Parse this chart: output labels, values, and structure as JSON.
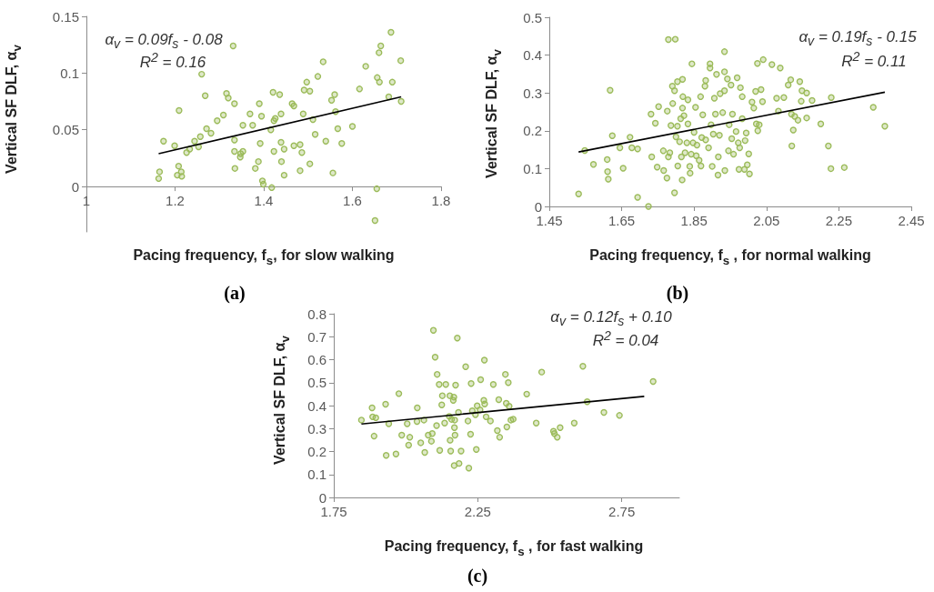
{
  "chart_data": [
    {
      "type": "scatter",
      "xlabel": "Pacing frequency, f$_{s}$, for slow walking",
      "ylabel": "Vertical SF DLF, α$_{v}$",
      "annotations": [
        "α$_{v}$ = 0.09f$_{s}$ - 0.08",
        "R$^{2}$ = 0.16",
        "(a)"
      ],
      "xlim": [
        1,
        1.8
      ],
      "xticks": [
        1,
        1.2,
        1.4,
        1.6,
        1.8
      ],
      "ylim": [
        -0.04,
        0.15
      ],
      "yticks": [
        0,
        0.05,
        0.1,
        0.15
      ],
      "grid": false,
      "marker": "circle",
      "series": [
        {
          "color": "#9bbb59",
          "x": [
            1.163,
            1.165,
            1.174,
            1.199,
            1.209,
            1.208,
            1.205,
            1.214,
            1.215,
            1.226,
            1.233,
            1.244,
            1.253,
            1.257,
            1.26,
            1.268,
            1.271,
            1.281,
            1.295,
            1.309,
            1.316,
            1.32,
            1.331,
            1.334,
            1.334,
            1.334,
            1.335,
            1.347,
            1.348,
            1.353,
            1.353,
            1.369,
            1.375,
            1.381,
            1.388,
            1.39,
            1.392,
            1.395,
            1.397,
            1.399,
            1.416,
            1.418,
            1.421,
            1.423,
            1.423,
            1.426,
            1.436,
            1.439,
            1.439,
            1.44,
            1.446,
            1.446,
            1.464,
            1.468,
            1.468,
            1.482,
            1.482,
            1.486,
            1.489,
            1.491,
            1.497,
            1.504,
            1.504,
            1.511,
            1.516,
            1.522,
            1.54,
            1.534,
            1.553,
            1.56,
            1.556,
            1.562,
            1.567,
            1.576,
            1.6,
            1.616,
            1.63,
            1.655,
            1.651,
            1.656,
            1.66,
            1.664,
            1.661,
            1.682,
            1.687,
            1.69,
            1.709,
            1.71
          ],
          "values": [
            0.007,
            0.013,
            0.04,
            0.036,
            0.067,
            0.018,
            0.01,
            0.013,
            0.009,
            0.03,
            0.033,
            0.04,
            0.035,
            0.044,
            0.099,
            0.08,
            0.051,
            0.047,
            0.058,
            0.063,
            0.082,
            0.078,
            0.124,
            0.073,
            0.041,
            0.031,
            0.016,
            0.026,
            0.029,
            0.054,
            0.031,
            0.064,
            0.054,
            0.016,
            0.022,
            0.073,
            0.038,
            0.062,
            0.005,
            0.002,
            0.05,
            -0.001,
            0.083,
            0.058,
            0.031,
            0.06,
            0.081,
            0.064,
            0.039,
            0.022,
            0.033,
            0.01,
            0.073,
            0.071,
            0.036,
            0.037,
            0.014,
            0.03,
            0.064,
            0.085,
            0.092,
            0.084,
            0.02,
            0.059,
            0.046,
            0.097,
            0.04,
            0.11,
            0.076,
            0.081,
            0.012,
            0.066,
            0.051,
            0.038,
            0.053,
            0.086,
            0.106,
            -0.002,
            -0.03,
            0.096,
            0.118,
            0.124,
            0.092,
            0.079,
            0.136,
            0.092,
            0.111,
            0.075
          ]
        },
        {
          "type": "line",
          "color": "#000000",
          "marker": "none",
          "x": [
            1.163,
            1.71
          ],
          "values": [
            0.029,
            0.079
          ]
        }
      ]
    },
    {
      "type": "scatter",
      "xlabel": "Pacing frequency, f$_{s}$ , for normal walking",
      "ylabel": "Vertical SF DLF, α$_{v}$",
      "annotations": [
        "α$_{v}$ = 0.19f$_{s}$ - 0.15",
        "R$^{2}$ = 0.11",
        "(b)"
      ],
      "xlim": [
        1.45,
        2.45
      ],
      "xticks": [
        1.45,
        1.65,
        1.85,
        2.05,
        2.25,
        2.45
      ],
      "ylim": [
        0,
        0.5
      ],
      "yticks": [
        0,
        0.1,
        0.2,
        0.3,
        0.4,
        0.5
      ],
      "grid": false,
      "marker": "circle",
      "series": [
        {
          "color": "#9bbb59",
          "x": [
            1.531,
            1.548,
            1.572,
            1.61,
            1.611,
            1.613,
            1.618,
            1.624,
            1.645,
            1.654,
            1.673,
            1.678,
            1.694,
            1.694,
            1.724,
            1.731,
            1.733,
            1.743,
            1.748,
            1.752,
            1.765,
            1.766,
            1.775,
            1.776,
            1.779,
            1.798,
            1.786,
            1.779,
            1.783,
            1.79,
            1.791,
            1.796,
            1.796,
            1.8,
            1.804,
            1.804,
            1.805,
            1.81,
            1.813,
            1.815,
            1.817,
            1.818,
            1.819,
            1.818,
            1.822,
            1.825,
            1.83,
            1.833,
            1.833,
            1.838,
            1.839,
            1.842,
            1.844,
            1.847,
            1.85,
            1.854,
            1.856,
            1.858,
            1.864,
            1.868,
            1.869,
            1.871,
            1.874,
            1.88,
            1.882,
            1.882,
            1.89,
            1.894,
            1.894,
            1.897,
            1.9,
            1.903,
            1.906,
            1.909,
            1.912,
            1.916,
            1.917,
            1.92,
            1.922,
            1.929,
            1.934,
            1.934,
            1.934,
            1.935,
            1.942,
            1.945,
            1.947,
            1.952,
            1.954,
            1.956,
            1.959,
            1.966,
            1.969,
            1.972,
            1.974,
            1.976,
            1.978,
            1.983,
            1.983,
            1.989,
            1.991,
            1.994,
            1.997,
            2.001,
            2.003,
            2.01,
            2.015,
            2.02,
            2.022,
            2.025,
            2.026,
            2.03,
            2.035,
            2.039,
            2.041,
            2.065,
            2.078,
            2.083,
            2.088,
            2.098,
            2.11,
            2.117,
            2.119,
            2.12,
            2.124,
            2.128,
            2.137,
            2.142,
            2.146,
            2.148,
            2.161,
            2.161,
            2.176,
            2.2,
            2.221,
            2.228,
            2.229,
            2.265,
            2.345,
            2.377
          ],
          "values": [
            0.033,
            0.148,
            0.111,
            0.124,
            0.092,
            0.072,
            0.307,
            0.187,
            0.155,
            0.101,
            0.183,
            0.155,
            0.024,
            0.152,
            0.0,
            0.244,
            0.131,
            0.22,
            0.104,
            0.264,
            0.147,
            0.095,
            0.075,
            0.252,
            0.441,
            0.442,
            0.214,
            0.131,
            0.142,
            0.318,
            0.272,
            0.306,
            0.036,
            0.184,
            0.33,
            0.212,
            0.107,
            0.171,
            0.232,
            0.131,
            0.07,
            0.336,
            0.29,
            0.26,
            0.24,
            0.142,
            0.168,
            0.282,
            0.218,
            0.106,
            0.088,
            0.138,
            0.377,
            0.168,
            0.196,
            0.262,
            0.134,
            0.162,
            0.122,
            0.29,
            0.107,
            0.182,
            0.242,
            0.318,
            0.333,
            0.176,
            0.155,
            0.377,
            0.366,
            0.216,
            0.106,
            0.191,
            0.286,
            0.244,
            0.349,
            0.083,
            0.131,
            0.188,
            0.298,
            0.248,
            0.409,
            0.356,
            0.306,
            0.095,
            0.337,
            0.147,
            0.216,
            0.321,
            0.179,
            0.244,
            0.138,
            0.198,
            0.34,
            0.168,
            0.098,
            0.155,
            0.314,
            0.29,
            0.232,
            0.098,
            0.174,
            0.194,
            0.11,
            0.139,
            0.086,
            0.276,
            0.26,
            0.304,
            0.218,
            0.378,
            0.2,
            0.216,
            0.309,
            0.277,
            0.388,
            0.375,
            0.286,
            0.252,
            0.366,
            0.288,
            0.321,
            0.335,
            0.244,
            0.16,
            0.202,
            0.238,
            0.228,
            0.33,
            0.278,
            0.306,
            0.3,
            0.234,
            0.28,
            0.218,
            0.16,
            0.1,
            0.288,
            0.103,
            0.262,
            0.212
          ]
        },
        {
          "type": "line",
          "color": "#000000",
          "marker": "none",
          "x": [
            1.531,
            2.377
          ],
          "values": [
            0.144,
            0.302
          ]
        }
      ]
    },
    {
      "type": "scatter",
      "xlabel": "Pacing frequency, f$_{s}$ , for fast walking",
      "ylabel": "Vertical SF DLF, α$_{v}$",
      "annotations": [
        "α$_{v}$ = 0.12f$_{s}$ + 0.10",
        "R$^{2}$ = 0.04",
        "(c)"
      ],
      "xlim": [
        1.75,
        2.95
      ],
      "xticks": [
        1.75,
        2.25,
        2.75
      ],
      "ylim": [
        0,
        0.8
      ],
      "yticks": [
        0,
        0.1,
        0.2,
        0.3,
        0.4,
        0.5,
        0.6,
        0.7,
        0.8
      ],
      "grid": false,
      "marker": "circle",
      "series": [
        {
          "color": "#9bbb59",
          "x": [
            1.846,
            1.883,
            1.885,
            1.89,
            1.896,
            1.93,
            1.932,
            1.941,
            1.966,
            1.976,
            1.986,
            2.005,
            2.01,
            2.014,
            2.039,
            2.04,
            2.052,
            2.063,
            2.066,
            2.078,
            2.089,
            2.092,
            2.096,
            2.102,
            2.107,
            2.109,
            2.116,
            2.118,
            2.125,
            2.127,
            2.135,
            2.139,
            2.151,
            2.153,
            2.154,
            2.156,
            2.159,
            2.165,
            2.167,
            2.168,
            2.169,
            2.17,
            2.171,
            2.173,
            2.179,
            2.183,
            2.185,
            2.192,
            2.208,
            2.216,
            2.219,
            2.225,
            2.227,
            2.231,
            2.242,
            2.245,
            2.248,
            2.258,
            2.26,
            2.271,
            2.273,
            2.274,
            2.279,
            2.294,
            2.304,
            2.318,
            2.323,
            2.326,
            2.346,
            2.349,
            2.351,
            2.356,
            2.359,
            2.365,
            2.373,
            2.42,
            2.453,
            2.472,
            2.513,
            2.516,
            2.526,
            2.536,
            2.585,
            2.615,
            2.63,
            2.688,
            2.742,
            2.859
          ],
          "values": [
            0.337,
            0.39,
            0.351,
            0.267,
            0.347,
            0.406,
            0.183,
            0.321,
            0.189,
            0.452,
            0.271,
            0.321,
            0.228,
            0.262,
            0.331,
            0.39,
            0.238,
            0.337,
            0.196,
            0.271,
            0.245,
            0.278,
            0.728,
            0.611,
            0.313,
            0.536,
            0.492,
            0.205,
            0.403,
            0.443,
            0.324,
            0.492,
            0.353,
            0.443,
            0.249,
            0.202,
            0.34,
            0.423,
            0.437,
            0.139,
            0.304,
            0.337,
            0.271,
            0.489,
            0.694,
            0.37,
            0.148,
            0.202,
            0.569,
            0.333,
            0.128,
            0.275,
            0.496,
            0.377,
            0.36,
            0.209,
            0.399,
            0.381,
            0.513,
            0.423,
            0.598,
            0.407,
            0.351,
            0.333,
            0.492,
            0.291,
            0.426,
            0.262,
            0.536,
            0.41,
            0.307,
            0.5,
            0.397,
            0.337,
            0.341,
            0.45,
            0.324,
            0.546,
            0.288,
            0.278,
            0.262,
            0.304,
            0.324,
            0.571,
            0.417,
            0.37,
            0.357,
            0.505
          ]
        },
        {
          "type": "line",
          "color": "#000000",
          "marker": "none",
          "x": [
            1.846,
            2.828
          ],
          "values": [
            0.32,
            0.44
          ]
        }
      ]
    }
  ]
}
